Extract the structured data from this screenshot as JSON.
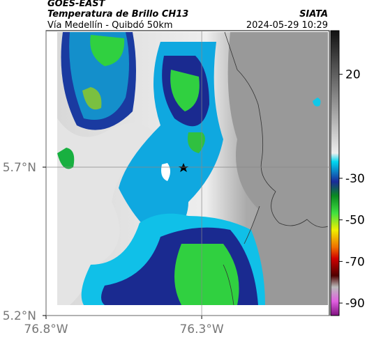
{
  "header": {
    "title": "GOES-EAST",
    "subtitle": "Temperatura de Brillo CH13",
    "route": "Vía Medellín - Quibdó 50km",
    "source": "SIATA",
    "timestamp": "2024-05-29 10:29"
  },
  "map": {
    "xlim": [
      -76.8,
      -75.89
    ],
    "ylim": [
      5.2,
      6.16
    ],
    "xticks": [
      {
        "value": -76.8,
        "label": "76.8°W"
      },
      {
        "value": -76.3,
        "label": "76.3°W"
      }
    ],
    "yticks": [
      {
        "value": 5.7,
        "label": "5.7°N"
      },
      {
        "value": 5.2,
        "label": "5.2°N"
      }
    ]
  },
  "colorbar": {
    "lim": [
      -96,
      41
    ],
    "ticks": [
      20,
      -30,
      -50,
      -70,
      -90
    ]
  }
}
